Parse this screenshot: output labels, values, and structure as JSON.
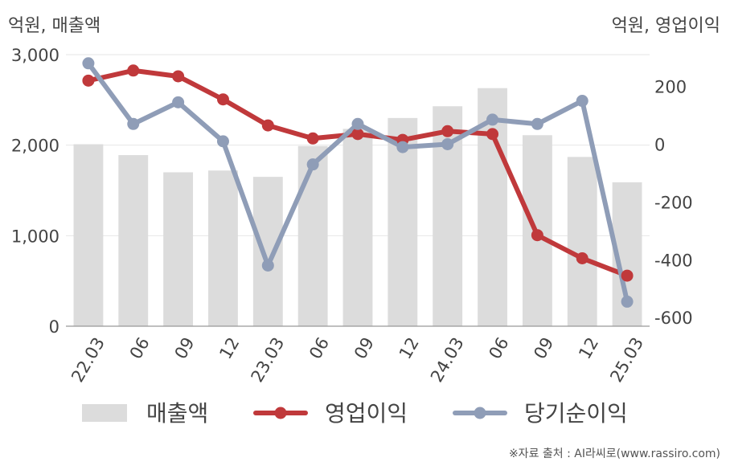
{
  "unit_left": "억원, 매출액",
  "unit_right": "억원, 영업이익",
  "source": "※자료 출처 : AI라씨로(www.rassiro.com)",
  "colors": {
    "sales": "#dcdcdc",
    "op": "#c0393b",
    "net": "#8f9db7",
    "grid": "#e6e6e6",
    "axis": "#999999"
  },
  "chart_data": {
    "type": "bar+line",
    "categories": [
      "22.03",
      "06",
      "09",
      "12",
      "23.03",
      "06",
      "09",
      "12",
      "24.03",
      "06",
      "09",
      "12",
      "25.03"
    ],
    "series": [
      {
        "name": "매출액",
        "type": "bar",
        "axis": "left",
        "values": [
          2010,
          1890,
          1700,
          1720,
          1650,
          1990,
          2180,
          2300,
          2430,
          2630,
          2110,
          1870,
          1590
        ]
      },
      {
        "name": "영업이익",
        "type": "line",
        "axis": "right",
        "values": [
          220,
          255,
          235,
          155,
          65,
          20,
          35,
          15,
          45,
          35,
          -315,
          -395,
          -455
        ]
      },
      {
        "name": "당기순이익",
        "type": "line",
        "axis": "right",
        "values": [
          280,
          70,
          145,
          10,
          -420,
          -70,
          70,
          -10,
          0,
          85,
          70,
          150,
          -545
        ]
      }
    ],
    "y_left": {
      "min": 0,
      "max": 3000,
      "ticks": [
        "0",
        "1,000",
        "2,000",
        "3,000"
      ],
      "tick_values": [
        0,
        1000,
        2000,
        3000
      ]
    },
    "y_right": {
      "min": -630,
      "max": 310,
      "ticks": [
        "-600",
        "-400",
        "-200",
        "0",
        "200"
      ],
      "tick_values": [
        -600,
        -400,
        -200,
        0,
        200
      ]
    },
    "grid": true,
    "legend": "bottom"
  }
}
